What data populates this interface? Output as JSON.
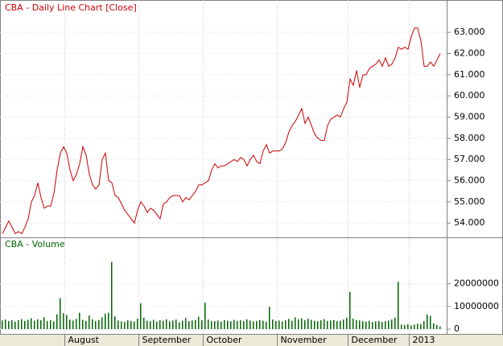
{
  "chart_data": [
    {
      "type": "line",
      "title": "CBA - Daily Line Chart [Close]",
      "color": "#cc0000",
      "grid": true,
      "categories": [
        null,
        null,
        null,
        null,
        null,
        null,
        null,
        null,
        null,
        null,
        null,
        null,
        null,
        null,
        null,
        null,
        null,
        null,
        null,
        null,
        "August",
        null,
        null,
        null,
        null,
        null,
        null,
        null,
        null,
        null,
        null,
        null,
        null,
        null,
        null,
        null,
        null,
        null,
        null,
        null,
        null,
        null,
        null,
        "September",
        null,
        null,
        null,
        null,
        null,
        null,
        null,
        null,
        null,
        null,
        null,
        null,
        null,
        null,
        null,
        null,
        null,
        null,
        null,
        "October",
        null,
        null,
        null,
        null,
        null,
        null,
        null,
        null,
        null,
        null,
        null,
        null,
        null,
        null,
        null,
        null,
        null,
        null,
        null,
        null,
        null,
        null,
        "November",
        null,
        null,
        null,
        null,
        null,
        null,
        null,
        null,
        null,
        null,
        null,
        null,
        null,
        null,
        null,
        null,
        null,
        null,
        null,
        null,
        null,
        "December",
        null,
        null,
        null,
        null,
        null,
        null,
        null,
        null,
        null,
        null,
        null,
        null,
        null,
        null,
        null,
        null,
        null,
        null,
        "2013",
        null,
        null,
        null,
        null,
        null,
        null,
        null,
        null,
        null
      ],
      "values": [
        53.5,
        53.8,
        54.1,
        53.8,
        53.5,
        53.6,
        53.5,
        53.8,
        54.2,
        55.0,
        55.3,
        55.9,
        55.2,
        54.7,
        54.8,
        54.8,
        55.4,
        56.5,
        57.3,
        57.6,
        57.3,
        56.5,
        56.0,
        56.3,
        56.8,
        57.6,
        57.2,
        56.3,
        55.8,
        55.6,
        55.8,
        57.0,
        57.3,
        56.0,
        55.9,
        55.3,
        55.2,
        54.9,
        54.6,
        54.4,
        54.2,
        54.0,
        54.6,
        55.0,
        54.8,
        54.5,
        54.7,
        54.6,
        54.4,
        54.2,
        54.9,
        55.0,
        55.2,
        55.3,
        55.3,
        55.3,
        55.0,
        55.2,
        55.1,
        55.3,
        55.5,
        55.8,
        55.8,
        55.9,
        56.0,
        56.5,
        56.8,
        56.6,
        56.7,
        56.7,
        56.8,
        56.9,
        57.0,
        56.9,
        57.1,
        57.0,
        56.7,
        57.0,
        57.2,
        56.9,
        56.8,
        57.4,
        57.7,
        57.3,
        57.4,
        57.4,
        57.4,
        57.5,
        57.8,
        58.3,
        58.6,
        58.8,
        59.1,
        59.4,
        58.7,
        59.0,
        58.6,
        58.2,
        58.0,
        57.9,
        57.9,
        58.6,
        58.9,
        59.0,
        59.1,
        59.0,
        59.4,
        59.7,
        60.8,
        60.5,
        61.2,
        60.4,
        61.0,
        61.0,
        61.3,
        61.4,
        61.5,
        61.7,
        61.4,
        61.8,
        61.4,
        61.5,
        61.8,
        62.3,
        62.2,
        62.3,
        62.2,
        62.8,
        63.2,
        63.2,
        62.6,
        61.4,
        61.4,
        61.6,
        61.4,
        61.7,
        62.0
      ],
      "ylim": [
        53.4,
        64.45
      ],
      "yticks": [
        {
          "value": 54,
          "label": "54.000"
        },
        {
          "value": 55,
          "label": "55.000"
        },
        {
          "value": 56,
          "label": "56.000"
        },
        {
          "value": 57,
          "label": "57.000"
        },
        {
          "value": 58,
          "label": "58.000"
        },
        {
          "value": 59,
          "label": "59.000"
        },
        {
          "value": 60,
          "label": "60.000"
        },
        {
          "value": 61,
          "label": "61.000"
        },
        {
          "value": 62,
          "label": "62.000"
        },
        {
          "value": 63,
          "label": "63.000"
        }
      ]
    },
    {
      "type": "bar",
      "title": "CBA - Volume",
      "color": "#006400",
      "grid": true,
      "values": [
        3800000,
        4200000,
        3500000,
        4000000,
        3300000,
        3900000,
        4400000,
        3600000,
        4100000,
        4800000,
        3700000,
        4300000,
        3900000,
        5200000,
        3600000,
        4000000,
        3400000,
        6500000,
        13600000,
        7000000,
        6200000,
        4200000,
        3800000,
        4500000,
        7200000,
        4100000,
        3600000,
        6000000,
        4300000,
        3500000,
        4000000,
        5100000,
        6800000,
        7200000,
        29500000,
        5600000,
        3800000,
        3400000,
        3200000,
        4000000,
        3600000,
        3300000,
        4600000,
        11400000,
        5000000,
        3700000,
        3500000,
        4100000,
        3300000,
        3900000,
        3600000,
        4300000,
        3400000,
        3800000,
        4200000,
        3000000,
        3700000,
        4900000,
        3500000,
        3800000,
        4100000,
        5500000,
        3900000,
        11600000,
        4200000,
        3600000,
        3500000,
        3800000,
        3300000,
        4000000,
        3700000,
        3400000,
        4100000,
        3600000,
        3900000,
        3500000,
        4300000,
        3800000,
        3400000,
        3600000,
        4000000,
        3700000,
        3300000,
        9800000,
        4200000,
        3600000,
        3800000,
        3400000,
        3900000,
        4500000,
        3700000,
        5200000,
        4300000,
        4800000,
        3900000,
        4600000,
        4100000,
        3700000,
        3500000,
        3900000,
        4400000,
        3600000,
        3800000,
        4000000,
        3500000,
        3700000,
        4200000,
        5000000,
        16400000,
        4600000,
        4000000,
        3800000,
        3500000,
        3300000,
        3700000,
        3100000,
        3400000,
        3600000,
        3200000,
        3500000,
        3800000,
        4200000,
        5000000,
        20800000,
        2000000,
        1800000,
        2200000,
        1600000,
        2000000,
        2400000,
        2200000,
        3500000,
        6400000,
        5800000,
        2500000,
        1800000,
        1200000
      ],
      "ylim": [
        -1750000,
        39600000
      ],
      "yticks": [
        0,
        10000000,
        20000000
      ]
    }
  ]
}
